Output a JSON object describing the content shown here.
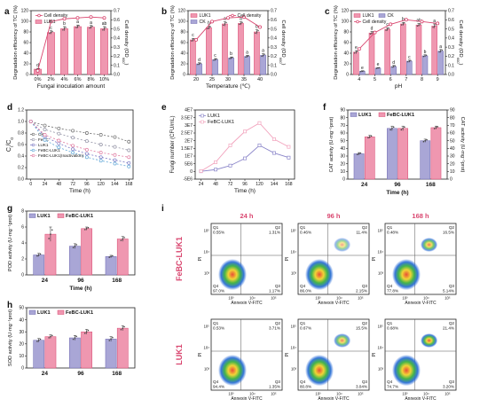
{
  "colors": {
    "pink": "#d9466f",
    "pinkFill": "#ef97b0",
    "blue": "#6e68b0",
    "blueFill": "#a9a6d6",
    "gray": "#6b6b6b",
    "flowHi": "#e8452c",
    "flowMid": "#3bb13f",
    "flowLo": "#2c6fd8"
  },
  "icons": {
    "marker_dot": "dot-marker-icon",
    "marker_circle": "open-circle-icon"
  },
  "chart_data": [
    {
      "id": "a",
      "panel": "a",
      "type": "bar",
      "categories": [
        "0%",
        "2%",
        "4%",
        "6%",
        "8%",
        "10%"
      ],
      "xlabel": "Fungal inoculation amount",
      "ylabel": "Degradation efficiency of TC (%)",
      "ylabel_suffix": "",
      "y2label": "Cell density (OD",
      "y2label_sub": "600",
      "y2label_suffix": ")",
      "ylim": [
        0,
        120
      ],
      "yticks": [
        0,
        20,
        40,
        60,
        80,
        100,
        120
      ],
      "y2lim": [
        0,
        0.7
      ],
      "y2ticks": [
        "0.0",
        "0.1",
        "0.2",
        "0.3",
        "0.4",
        "0.5",
        "0.6",
        "0.7"
      ],
      "series": [
        {
          "name": "LUK1",
          "kind": "bar",
          "values": [
            10,
            79,
            86,
            90,
            89,
            86
          ],
          "errors": [
            1.5,
            3,
            4,
            3,
            3,
            4
          ],
          "labels": [
            "d",
            "c",
            "b",
            "a",
            "a",
            "ab"
          ]
        },
        {
          "name": "Cell density",
          "kind": "line",
          "values": [
            0.04,
            0.58,
            0.61,
            0.62,
            0.63,
            0.62
          ],
          "errors": [
            0.01,
            0.02,
            0.02,
            0.02,
            0.02,
            0.02
          ]
        }
      ],
      "legend": [
        "Cell density",
        "LUK1"
      ]
    },
    {
      "id": "b",
      "panel": "b",
      "type": "bar",
      "categories": [
        "20",
        "25",
        "30",
        "35",
        "40"
      ],
      "xlabel": "Temperature (℃)",
      "ylabel": "Degradation efficiency of TC (%)",
      "ylabel_suffix": "",
      "y2label": "Cell density (OD",
      "y2label_sub": "600",
      "y2label_suffix": ")",
      "ylim": [
        0,
        120
      ],
      "yticks": [
        0,
        20,
        40,
        60,
        80,
        100,
        120
      ],
      "y2lim": [
        0,
        0.7
      ],
      "y2ticks": [
        "0.0",
        "0.1",
        "0.2",
        "0.3",
        "0.4",
        "0.5",
        "0.6",
        "0.7"
      ],
      "series": [
        {
          "name": "LUK1",
          "kind": "bar",
          "values": [
            65,
            88,
            95,
            96,
            80
          ],
          "errors": [
            3,
            3,
            4,
            3,
            4
          ],
          "labels": [
            "c",
            "b",
            "a",
            "a",
            "b"
          ]
        },
        {
          "name": "CK",
          "kind": "bar",
          "values": [
            20,
            28,
            31,
            34,
            36
          ],
          "errors": [
            2,
            2,
            2,
            2,
            3
          ],
          "labels": [
            "d",
            "c",
            "b",
            "a",
            "a"
          ]
        },
        {
          "name": "Cell density",
          "kind": "line",
          "values": [
            0.38,
            0.58,
            0.62,
            0.63,
            0.52
          ],
          "errors": [
            0.02,
            0.02,
            0.02,
            0.02,
            0.02
          ]
        }
      ],
      "legend": [
        "LUK1",
        "CK",
        "Cell density"
      ]
    },
    {
      "id": "c",
      "panel": "c",
      "type": "bar",
      "categories": [
        "4",
        "5",
        "6",
        "7",
        "8",
        "9"
      ],
      "xlabel": "pH",
      "ylabel": "Degradation efficiency of TC (%)",
      "ylabel_suffix": "",
      "y2label": "Cell density (OD",
      "y2label_sub": "600",
      "y2label_suffix": ")",
      "ylim": [
        0,
        120
      ],
      "yticks": [
        0,
        20,
        40,
        60,
        80,
        100,
        120
      ],
      "y2lim": [
        0,
        0.7
      ],
      "y2ticks": [
        "0.0",
        "0.1",
        "0.2",
        "0.3",
        "0.4",
        "0.5",
        "0.6",
        "0.7"
      ],
      "series": [
        {
          "name": "LUK1",
          "kind": "bar",
          "values": [
            42,
            78,
            85,
            95,
            93,
            91
          ],
          "errors": [
            3,
            3,
            3,
            3,
            3,
            4
          ],
          "labels": [
            "e",
            "d",
            "c",
            "b",
            "ab",
            "a"
          ]
        },
        {
          "name": "CK",
          "kind": "bar",
          "values": [
            6,
            12,
            15,
            25,
            35,
            44
          ],
          "errors": [
            1,
            1,
            2,
            2,
            2,
            3
          ],
          "labels": [
            "e",
            "e",
            "d",
            "c",
            "b",
            "a"
          ]
        },
        {
          "name": "Cell density",
          "kind": "line",
          "values": [
            0.28,
            0.46,
            0.55,
            0.6,
            0.58,
            0.56
          ],
          "errors": [
            0.02,
            0.02,
            0.02,
            0.02,
            0.02,
            0.02
          ]
        }
      ],
      "legend": [
        "LUK1",
        "CK",
        "Cell density"
      ]
    },
    {
      "id": "d",
      "panel": "d",
      "type": "line",
      "categories": [
        "0",
        "24",
        "48",
        "72",
        "96",
        "120",
        "144",
        "168"
      ],
      "xlabel": "Time (h)",
      "ylabel": "C",
      "ylabel_sub": "t",
      "ylabel_mid": "/C",
      "ylabel_sub2": "0",
      "ylim": [
        0,
        1.2
      ],
      "yticks": [
        "0.0",
        "0.2",
        "0.4",
        "0.6",
        "0.8",
        "1.0",
        "1.2"
      ],
      "series": [
        {
          "name": "CK",
          "values": [
            1.0,
            0.93,
            0.88,
            0.84,
            0.8,
            0.77,
            0.73,
            0.65
          ],
          "color": "#6b6b6b",
          "marker": "open-circle",
          "dash": "2,2"
        },
        {
          "name": "FeBC",
          "values": [
            1.0,
            0.86,
            0.79,
            0.72,
            0.66,
            0.6,
            0.56,
            0.5
          ],
          "color": "#9696a8",
          "marker": "open-circle",
          "dash": "2,2"
        },
        {
          "name": "LUK1",
          "values": [
            1.0,
            0.74,
            0.62,
            0.52,
            0.44,
            0.38,
            0.33,
            0.28
          ],
          "color": "#7a78c4",
          "marker": "open-circle",
          "dash": "2,2"
        },
        {
          "name": "FeBC-LUK1",
          "values": [
            1.0,
            0.68,
            0.55,
            0.46,
            0.38,
            0.32,
            0.27,
            0.22
          ],
          "color": "#5fa6d6",
          "marker": "open-circle",
          "dash": "2,2"
        },
        {
          "name": "FeBC-LUK1(Inactivation)",
          "values": [
            1.0,
            0.77,
            0.67,
            0.58,
            0.51,
            0.46,
            0.42,
            0.38
          ],
          "color": "#e07aa0",
          "marker": "open-circle",
          "dash": "2,2"
        }
      ],
      "legend": [
        "CK",
        "FeBC",
        "LUK1",
        "FeBC-LUK1",
        "FeBC-LUK1(Inactivation)"
      ]
    },
    {
      "id": "e",
      "panel": "e",
      "type": "line",
      "categories": [
        "24",
        "48",
        "72",
        "96",
        "120",
        "144",
        "168"
      ],
      "xlabel": "Time (h)",
      "ylabel": "Fungi number (CFU/mL)",
      "ylim": [
        -5000000,
        40000000
      ],
      "yticks": [
        "-5E6",
        "0",
        "5E6",
        "1E7",
        "1.5E7",
        "2E7",
        "2.5E7",
        "3E7",
        "3.5E7",
        "4E7"
      ],
      "series": [
        {
          "name": "LUK1",
          "values": [
            100000,
            1200000,
            3800000,
            8500000,
            17000000,
            12000000,
            9000000
          ],
          "color": "#8a85c9"
        },
        {
          "name": "FeBC-LUK1",
          "values": [
            200000,
            6000000,
            17000000,
            26000000,
            31500000,
            21000000,
            16000000
          ],
          "color": "#f2a3bd"
        }
      ],
      "legend": [
        "LUK1",
        "FeBC-LUK1"
      ]
    },
    {
      "id": "f",
      "panel": "f",
      "type": "bar",
      "categories": [
        "24",
        "96",
        "168"
      ],
      "xlabel": "Time (h)",
      "ylabel": "CAT activity (U·mg⁻¹prot)",
      "y2label": "CAT activity (U·mg⁻¹prot)",
      "ylim": [
        0,
        90
      ],
      "yticks": [
        "0",
        "10",
        "20",
        "30",
        "40",
        "50",
        "60",
        "70",
        "80",
        "90"
      ],
      "series": [
        {
          "name": "LUK1",
          "values": [
            33,
            66,
            50
          ],
          "errors": [
            1.5,
            3,
            2
          ]
        },
        {
          "name": "FeBC-LUK1",
          "values": [
            55,
            66,
            67
          ],
          "errors": [
            2,
            3,
            2
          ]
        }
      ],
      "legend": [
        "LUK1",
        "FeBC-LUK1"
      ]
    },
    {
      "id": "g",
      "panel": "g",
      "type": "bar",
      "categories": [
        "24",
        "96",
        "168"
      ],
      "xlabel": "Time (h)",
      "ylabel": "POD activity (U·mg⁻¹prot)",
      "ylim": [
        0,
        8
      ],
      "yticks": [
        "0",
        "2",
        "4",
        "6",
        "8"
      ],
      "series": [
        {
          "name": "LUK1",
          "values": [
            2.5,
            3.6,
            2.3
          ],
          "errors": [
            0.2,
            0.3,
            0.15
          ]
        },
        {
          "name": "FeBC-LUK1",
          "values": [
            5.1,
            5.8,
            4.5
          ],
          "errors": [
            0.9,
            0.2,
            0.3
          ]
        }
      ],
      "legend": [
        "LUK1",
        "FeBC-LUK1"
      ]
    },
    {
      "id": "h",
      "panel": "h",
      "type": "bar",
      "categories": [
        "24",
        "96",
        "168"
      ],
      "xlabel": "",
      "ylabel": "SOD activity (U·mg⁻¹prot)",
      "ylim": [
        0,
        50
      ],
      "yticks": [
        "0",
        "10",
        "20",
        "30",
        "40",
        "50"
      ],
      "series": [
        {
          "name": "LUK1",
          "values": [
            23,
            25,
            24
          ],
          "errors": [
            1.5,
            2,
            2
          ]
        },
        {
          "name": "FeBC-LUK1",
          "values": [
            26,
            30,
            33
          ],
          "errors": [
            1.5,
            2,
            2
          ]
        }
      ],
      "legend": [
        "LUK1",
        "FeBC-LUK1"
      ]
    },
    {
      "id": "i",
      "panel": "i",
      "type": "scatter",
      "columns": [
        "24 h",
        "96 h",
        "168 h"
      ],
      "rows": [
        "FeBC-LUK1",
        "LUK1"
      ],
      "xlabel": "Annexin V-FITC",
      "ylabel": "PI",
      "ticks": [
        "10³",
        "10⁴",
        "10⁵"
      ],
      "quadrants": [
        [
          {
            "Q1": "0.55%",
            "Q2": "1.31%",
            "Q3": "1.17%",
            "Q4": "97.0%"
          },
          {
            "Q1": "0.46%",
            "Q2": "11.4%",
            "Q3": "2.15%",
            "Q4": "86.0%"
          },
          {
            "Q1": "0.48%",
            "Q2": "16.5%",
            "Q3": "5.14%",
            "Q4": "77.8%"
          }
        ],
        [
          {
            "Q1": "0.53%",
            "Q2": "3.71%",
            "Q3": "1.35%",
            "Q4": "94.4%"
          },
          {
            "Q1": "0.67%",
            "Q2": "15.5%",
            "Q3": "3.04%",
            "Q4": "80.8%"
          },
          {
            "Q1": "0.68%",
            "Q2": "21.4%",
            "Q3": "3.20%",
            "Q4": "74.7%"
          }
        ]
      ],
      "quadrant_names": [
        "Q1",
        "Q2",
        "Q3",
        "Q4"
      ]
    }
  ]
}
